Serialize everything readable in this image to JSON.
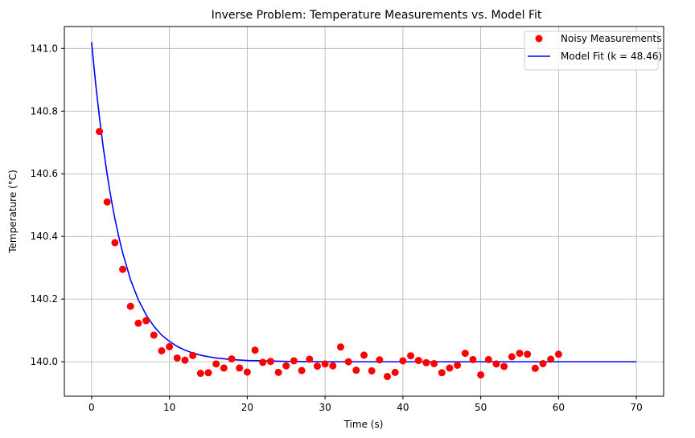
{
  "chart_data": {
    "type": "scatter",
    "title": "Inverse Problem: Temperature Measurements vs. Model Fit",
    "xlabel": "Time (s)",
    "ylabel": "Temperature (°C)",
    "xlim": [
      -3.5,
      73.5
    ],
    "ylim": [
      139.89,
      141.07
    ],
    "xticks": [
      0,
      10,
      20,
      30,
      40,
      50,
      60,
      70
    ],
    "yticks": [
      140.0,
      140.2,
      140.4,
      140.6,
      140.8,
      141.0
    ],
    "xtick_labels": [
      "0",
      "10",
      "20",
      "30",
      "40",
      "50",
      "60",
      "70"
    ],
    "ytick_labels": [
      "140.0",
      "140.2",
      "140.4",
      "140.6",
      "140.8",
      "141.0"
    ],
    "grid": true,
    "legend_position": "top-right",
    "series": [
      {
        "name": "Noisy Measurements",
        "kind": "scatter",
        "color": "#ff0000",
        "x": [
          1,
          2,
          3,
          4,
          5,
          6,
          7,
          8,
          9,
          10,
          11,
          12,
          13,
          14,
          15,
          16,
          17,
          18,
          19,
          20,
          21,
          22,
          23,
          24,
          25,
          26,
          27,
          28,
          29,
          30,
          31,
          32,
          33,
          34,
          35,
          36,
          37,
          38,
          39,
          40,
          41,
          42,
          43,
          44,
          45,
          46,
          47,
          48,
          49,
          50,
          51,
          52,
          53,
          54,
          55,
          56,
          57,
          58,
          59,
          60
        ],
        "y": [
          140.735,
          140.51,
          140.38,
          140.295,
          140.177,
          140.123,
          140.131,
          140.085,
          140.035,
          140.048,
          140.012,
          140.005,
          140.02,
          139.963,
          139.965,
          139.993,
          139.98,
          140.009,
          139.98,
          139.967,
          140.037,
          139.998,
          140.001,
          139.966,
          139.987,
          140.003,
          139.972,
          140.008,
          139.986,
          139.993,
          139.987,
          140.047,
          140.0,
          139.973,
          140.021,
          139.971,
          140.006,
          139.953,
          139.966,
          140.003,
          140.019,
          140.004,
          139.997,
          139.994,
          139.965,
          139.98,
          139.989,
          140.027,
          140.007,
          139.958,
          140.007,
          139.993,
          139.985,
          140.016,
          140.027,
          140.024,
          139.979,
          139.994,
          140.008,
          140.024
        ]
      },
      {
        "name": "Model Fit (k = 48.46)",
        "kind": "line",
        "color": "#0000ff",
        "x": [
          0,
          0.5,
          1,
          1.5,
          2,
          2.5,
          3,
          3.5,
          4,
          5,
          6,
          7,
          8,
          9,
          10,
          11,
          12,
          13,
          14,
          15,
          16,
          18,
          20,
          25,
          30,
          40,
          50,
          60,
          70
        ],
        "y": [
          141.02,
          140.893,
          140.782,
          140.684,
          140.598,
          140.522,
          140.456,
          140.398,
          140.347,
          140.262,
          140.198,
          140.15,
          140.113,
          140.085,
          140.065,
          140.049,
          140.037,
          140.028,
          140.021,
          140.016,
          140.012,
          140.007,
          140.004,
          140.001,
          140.0,
          140.0,
          140.0,
          140.0,
          140.0
        ]
      }
    ]
  }
}
